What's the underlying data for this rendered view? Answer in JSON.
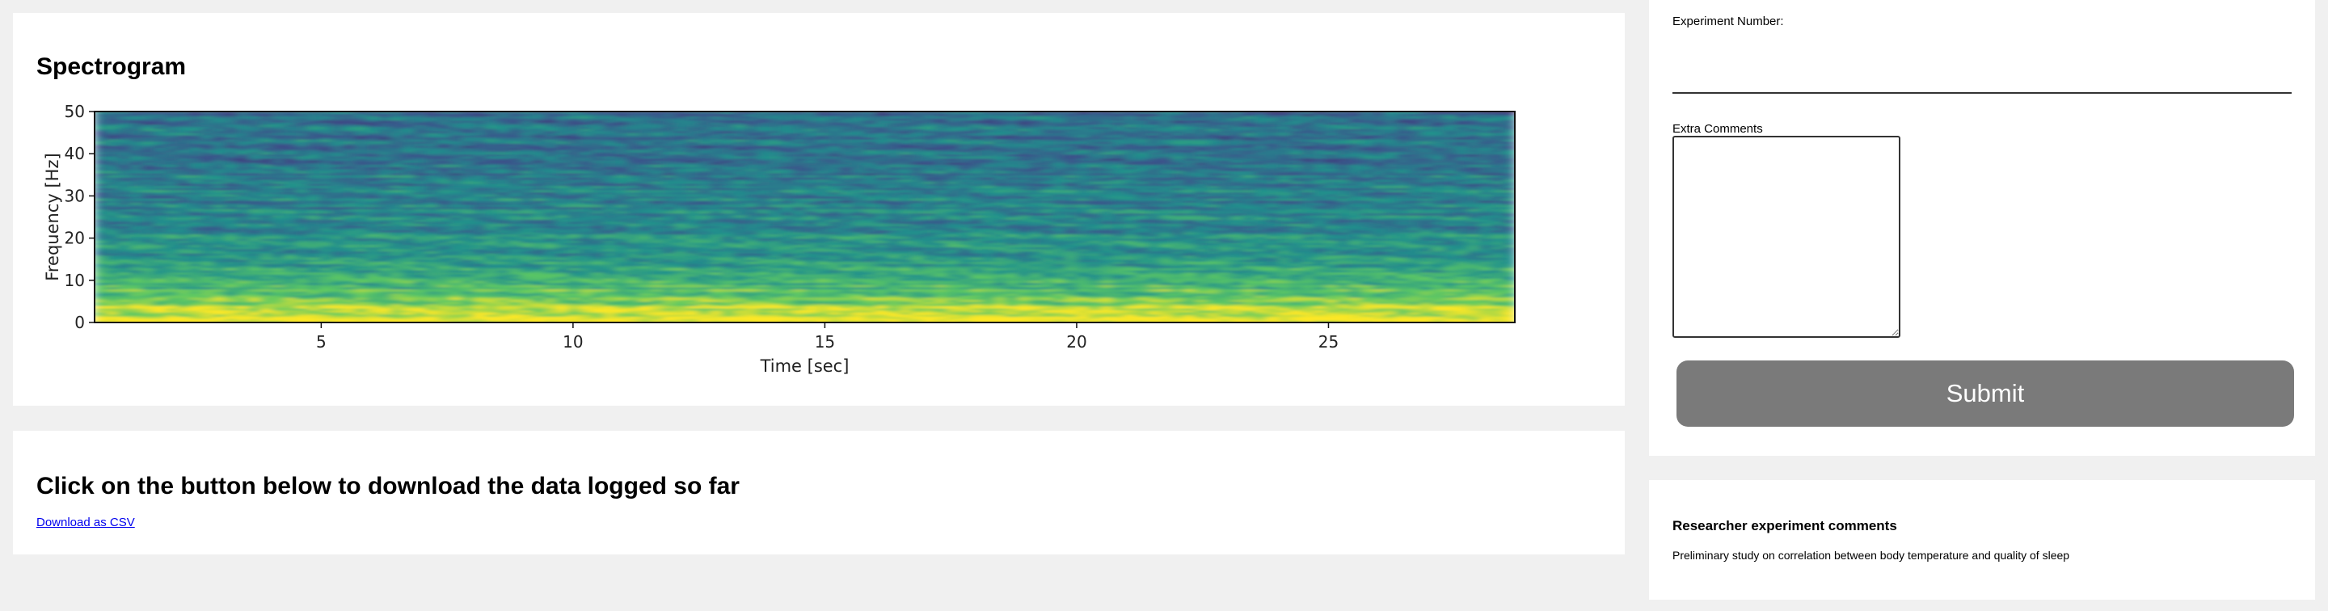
{
  "spectrogram_card": {
    "title": "Spectrogram"
  },
  "chart_data": {
    "type": "heatmap",
    "title": "",
    "xlabel": "Time [sec]",
    "ylabel": "Frequency [Hz]",
    "xlim": [
      0.5,
      28.7
    ],
    "ylim": [
      0,
      50
    ],
    "x_ticks": [
      5,
      10,
      15,
      20,
      25
    ],
    "y_ticks": [
      0,
      10,
      20,
      30,
      40,
      50
    ],
    "colormap": "viridis",
    "grid": false,
    "band_intensity": [
      0.95,
      0.88,
      0.8,
      0.72,
      0.66,
      0.62,
      0.58,
      0.55,
      0.52,
      0.5,
      0.48,
      0.46,
      0.45,
      0.44,
      0.43,
      0.42,
      0.41,
      0.4,
      0.4,
      0.39,
      0.38,
      0.38,
      0.37,
      0.37,
      0.36
    ]
  },
  "download_card": {
    "title": "Click on the button below to download the data logged so far",
    "link_label": "Download as CSV"
  },
  "form": {
    "experiment_number_label": "Experiment Number:",
    "experiment_number_value": "",
    "extra_comments_label": "Extra Comments",
    "extra_comments_value": "",
    "submit_label": "Submit"
  },
  "researcher_comments": {
    "heading": "Researcher experiment comments",
    "text": "Preliminary study on correlation between body temperature and quality of sleep"
  }
}
